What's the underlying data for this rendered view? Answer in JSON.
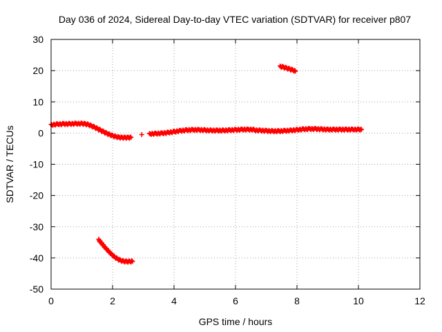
{
  "chart_data": {
    "type": "scatter",
    "title": "Day 036 of 2024, Sidereal Day-to-day VTEC variation (SDTVAR) for receiver p807",
    "xlabel": "GPS time / hours",
    "ylabel": "SDTVAR / TECUs",
    "xlim": [
      0,
      12
    ],
    "ylim": [
      -50,
      30
    ],
    "xticks": [
      0,
      2,
      4,
      6,
      8,
      10,
      12
    ],
    "yticks": [
      -50,
      -40,
      -30,
      -20,
      -10,
      0,
      10,
      20,
      30
    ],
    "grid": true,
    "marker": "+",
    "color": "#ff0000",
    "series": [
      {
        "segments": [
          {
            "x": [
              0.0,
              0.2,
              0.4,
              0.6,
              0.8,
              1.0,
              1.1,
              1.2,
              1.3,
              1.4,
              1.5,
              1.6,
              1.7,
              1.8,
              1.9,
              2.0,
              2.1,
              2.2,
              2.3,
              2.4,
              2.5,
              2.6
            ],
            "y": [
              2.6,
              2.8,
              2.9,
              2.9,
              3.0,
              3.0,
              2.9,
              2.7,
              2.3,
              1.9,
              1.4,
              0.9,
              0.4,
              -0.1,
              -0.5,
              -0.9,
              -1.2,
              -1.4,
              -1.5,
              -1.5,
              -1.5,
              -1.4
            ]
          },
          {
            "x": [
              2.95
            ],
            "y": [
              -0.5
            ]
          },
          {
            "x": [
              3.2,
              3.4,
              3.6,
              3.8,
              4.0,
              4.2,
              4.4,
              4.6,
              4.8,
              5.0,
              5.2,
              5.4,
              5.6,
              5.8,
              6.0,
              6.2,
              6.4,
              6.6
            ],
            "y": [
              -0.3,
              -0.2,
              -0.1,
              0.1,
              0.4,
              0.7,
              0.9,
              1.0,
              1.0,
              0.9,
              0.8,
              0.8,
              0.8,
              0.9,
              1.0,
              1.1,
              1.1,
              1.1
            ]
          },
          {
            "x": [
              6.6,
              6.8,
              7.0,
              7.2,
              7.4,
              7.6,
              7.8,
              8.0,
              8.2,
              8.4,
              8.6,
              8.8,
              9.0,
              9.2,
              9.4,
              9.6,
              9.8,
              10.0,
              10.1
            ],
            "y": [
              0.9,
              0.8,
              0.7,
              0.6,
              0.6,
              0.7,
              0.8,
              1.0,
              1.2,
              1.3,
              1.3,
              1.2,
              1.1,
              1.1,
              1.1,
              1.1,
              1.1,
              1.1,
              1.1
            ]
          },
          {
            "x": [
              7.45,
              7.55,
              7.65,
              7.75,
              7.85,
              7.95
            ],
            "y": [
              21.3,
              21.1,
              20.8,
              20.5,
              20.2,
              19.8
            ]
          },
          {
            "x": [
              1.55,
              1.65,
              1.75,
              1.85,
              1.95,
              2.05,
              2.15,
              2.25,
              2.35,
              2.45,
              2.55,
              2.65
            ],
            "y": [
              -34.2,
              -35.4,
              -36.6,
              -37.7,
              -38.7,
              -39.6,
              -40.3,
              -40.8,
              -41.1,
              -41.2,
              -41.2,
              -41.1
            ]
          }
        ]
      }
    ]
  }
}
